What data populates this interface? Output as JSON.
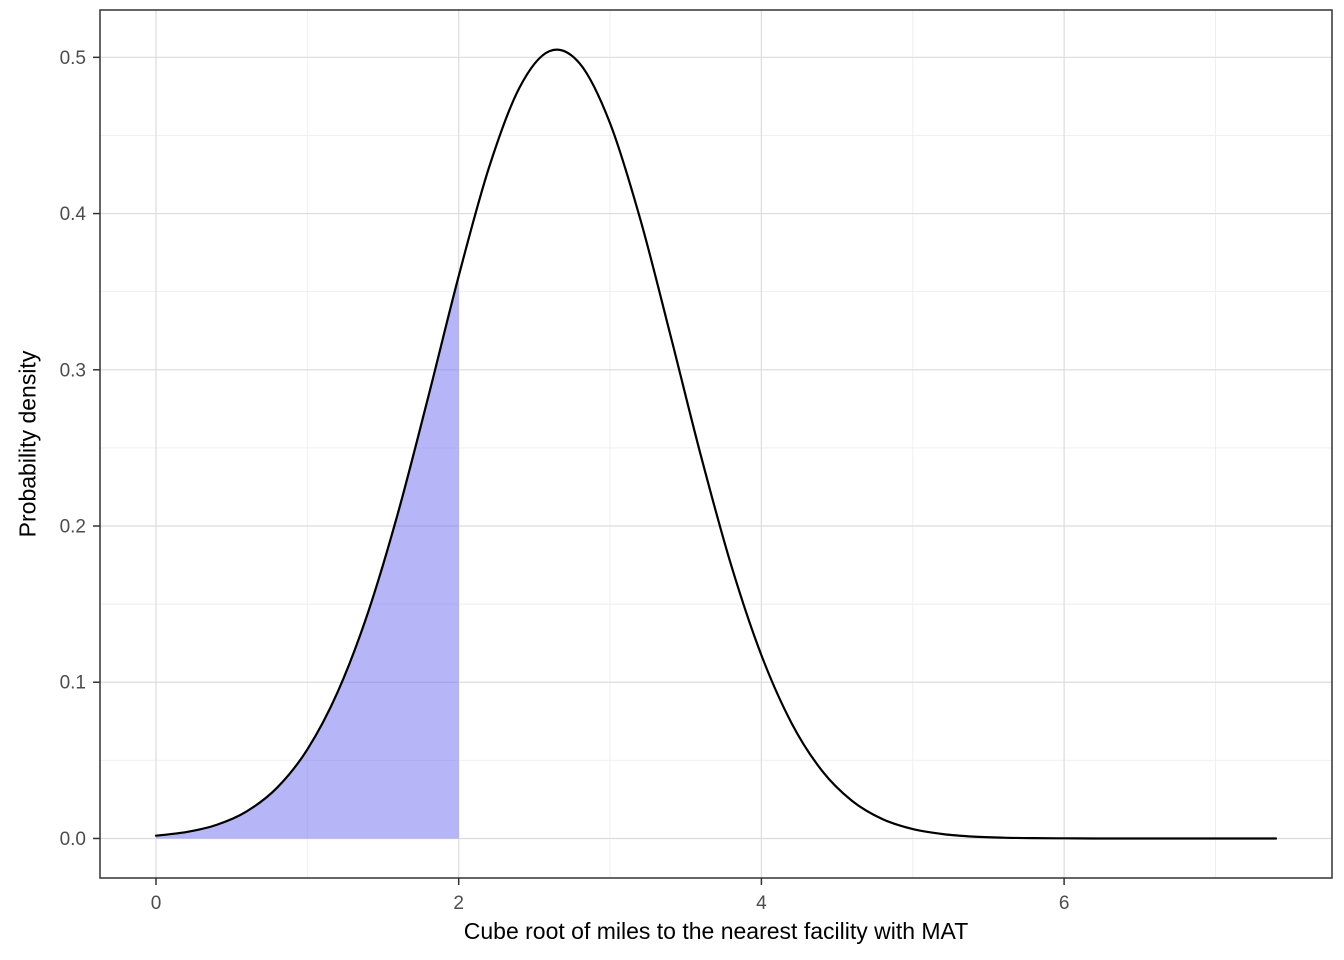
{
  "chart_data": {
    "type": "area",
    "title": "",
    "xlabel": "Cube root of miles to the nearest facility with MAT",
    "ylabel": "Probability density",
    "xlim": [
      -0.37,
      7.77
    ],
    "ylim": [
      -0.0253,
      0.5303
    ],
    "grid": true,
    "legend": "none",
    "x_ticks": [
      0,
      2,
      4,
      6
    ],
    "x_tick_labels": [
      "0",
      "2",
      "4",
      "6"
    ],
    "y_ticks": [
      0.0,
      0.1,
      0.2,
      0.3,
      0.4,
      0.5
    ],
    "y_tick_labels": [
      "0.0",
      "0.1",
      "0.2",
      "0.3",
      "0.4",
      "0.5"
    ],
    "x_minor_ticks": [
      1,
      3,
      5,
      7
    ],
    "y_minor_ticks": [
      0.05,
      0.15,
      0.25,
      0.35,
      0.45
    ],
    "series": [
      {
        "name": "density",
        "x": [
          0.0,
          0.2,
          0.4,
          0.6,
          0.8,
          1.0,
          1.2,
          1.4,
          1.6,
          1.8,
          2.0,
          2.2,
          2.4,
          2.6,
          2.8,
          3.0,
          3.2,
          3.4,
          3.6,
          3.8,
          4.0,
          4.2,
          4.4,
          4.6,
          4.8,
          5.0,
          5.2,
          5.4,
          5.6,
          5.8,
          6.0,
          6.2,
          6.4,
          6.6,
          6.8,
          7.0,
          7.2,
          7.4
        ],
        "y": [
          0.0018,
          0.0041,
          0.0087,
          0.0174,
          0.0325,
          0.057,
          0.0937,
          0.1444,
          0.2088,
          0.2831,
          0.36,
          0.4294,
          0.4803,
          0.504,
          0.496,
          0.4578,
          0.3963,
          0.3218,
          0.2451,
          0.175,
          0.1173,
          0.0737,
          0.0434,
          0.024,
          0.0124,
          0.006,
          0.0028,
          0.0012,
          0.0005,
          0.0002,
          0.0001,
          0.0,
          0.0,
          0.0,
          0.0,
          0.0,
          0.0,
          0.0
        ]
      }
    ],
    "peak": {
      "x": 2.65,
      "y": 0.505
    },
    "shaded_region": {
      "x_from": 0,
      "x_to": 2
    },
    "colors": {
      "curve": "#000000",
      "shade_fill": "#6b6bf0",
      "shade_opacity": 0.5,
      "grid_major": "#dcdcdc",
      "grid_minor": "#eeeeee",
      "panel_border": "#333333",
      "tick": "#333333",
      "tick_label": "#4d4d4d",
      "background": "#ffffff"
    }
  }
}
